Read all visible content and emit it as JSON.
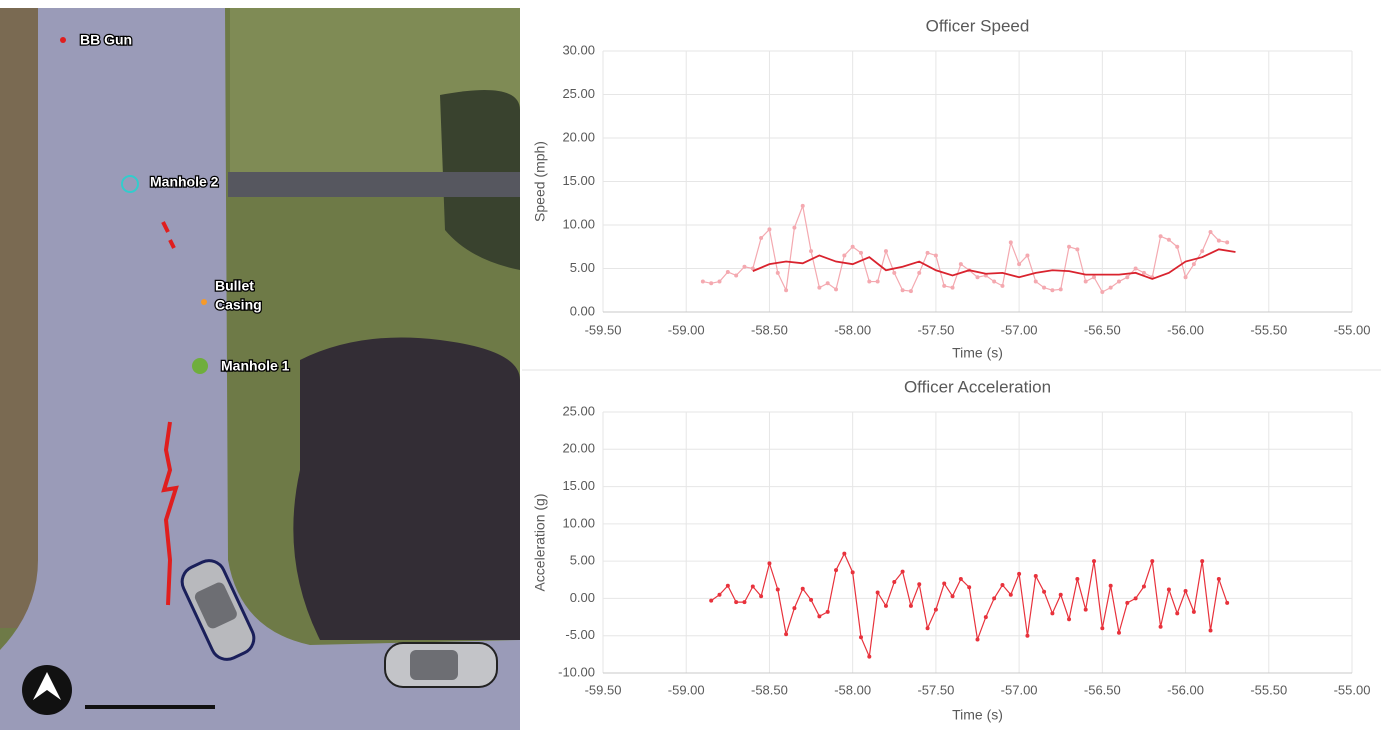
{
  "image": {
    "labels": [
      "BB Gun",
      "Manhole 2",
      [
        "Bullet",
        "Casing"
      ],
      "Manhole 1"
    ]
  },
  "chart_data": [
    {
      "type": "line",
      "title": "Officer Speed",
      "x_label": "Time (s)",
      "y_label": "Speed (mph)",
      "grid": true,
      "xlim": [
        -59.5,
        -55
      ],
      "ylim": [
        0,
        30
      ],
      "xticks": [
        {
          "value": -59.5,
          "label": "-59.50"
        },
        {
          "value": -59,
          "label": "-59.00"
        },
        {
          "value": -58.5,
          "label": "-58.50"
        },
        {
          "value": -58,
          "label": "-58.00"
        },
        {
          "value": -57.5,
          "label": "-57.50"
        },
        {
          "value": -57,
          "label": "-57.00"
        },
        {
          "value": -56.5,
          "label": "-56.50"
        },
        {
          "value": -56,
          "label": "-56.00"
        },
        {
          "value": -55.5,
          "label": "-55.50"
        },
        {
          "value": -55,
          "label": "-55.00"
        }
      ],
      "yticks": [
        {
          "value": 0,
          "label": "0.00"
        },
        {
          "value": 5,
          "label": "5.00"
        },
        {
          "value": 10,
          "label": "10.00"
        },
        {
          "value": 15,
          "label": "15.00"
        },
        {
          "value": 20,
          "label": "20.00"
        },
        {
          "value": 25,
          "label": "25.00"
        },
        {
          "value": 30,
          "label": "30.00"
        }
      ],
      "series": [
        {
          "color": "#f4a9b0",
          "markers": true,
          "x": [
            -58.9,
            -58.85,
            -58.8,
            -58.75,
            -58.7,
            -58.65,
            -58.6,
            -58.55,
            -58.5,
            -58.45,
            -58.4,
            -58.35,
            -58.3,
            -58.25,
            -58.2,
            -58.15,
            -58.1,
            -58.05,
            -58.0,
            -57.95,
            -57.9,
            -57.85,
            -57.8,
            -57.75,
            -57.7,
            -57.65,
            -57.6,
            -57.55,
            -57.5,
            -57.45,
            -57.4,
            -57.35,
            -57.3,
            -57.25,
            -57.2,
            -57.15,
            -57.1,
            -57.05,
            -57.0,
            -56.95,
            -56.9,
            -56.85,
            -56.8,
            -56.75,
            -56.7,
            -56.65,
            -56.6,
            -56.55,
            -56.5,
            -56.45,
            -56.4,
            -56.35,
            -56.3,
            -56.25,
            -56.2,
            -56.15,
            -56.1,
            -56.05,
            -56.0,
            -55.95,
            -55.9,
            -55.85,
            -55.8,
            -55.75
          ],
          "values": [
            3.5,
            3.3,
            3.5,
            4.6,
            4.2,
            5.2,
            5.0,
            8.5,
            9.5,
            4.5,
            2.5,
            9.7,
            12.2,
            7.0,
            2.8,
            3.3,
            2.6,
            6.5,
            7.5,
            6.8,
            3.5,
            3.5,
            7.0,
            4.5,
            2.5,
            2.4,
            4.5,
            6.8,
            6.5,
            3.0,
            2.8,
            5.5,
            4.8,
            4.0,
            4.2,
            3.5,
            3.0,
            8.0,
            5.5,
            6.5,
            3.5,
            2.8,
            2.5,
            2.6,
            7.5,
            7.2,
            3.5,
            4.0,
            2.3,
            2.8,
            3.5,
            4.0,
            5.0,
            4.5,
            4.0,
            8.7,
            8.3,
            7.5,
            4.0,
            5.5,
            7.0,
            9.2,
            8.2,
            8.0
          ]
        },
        {
          "color": "#d9232e",
          "markers": false,
          "x": [
            -58.6,
            -58.5,
            -58.4,
            -58.3,
            -58.2,
            -58.1,
            -58.0,
            -57.9,
            -57.8,
            -57.7,
            -57.6,
            -57.5,
            -57.4,
            -57.3,
            -57.2,
            -57.1,
            -57.0,
            -56.9,
            -56.8,
            -56.7,
            -56.6,
            -56.5,
            -56.4,
            -56.3,
            -56.2,
            -56.1,
            -56.0,
            -55.9,
            -55.8,
            -55.7
          ],
          "values": [
            4.7,
            5.5,
            5.8,
            5.6,
            6.5,
            5.8,
            5.5,
            6.3,
            4.8,
            5.2,
            5.8,
            4.8,
            4.2,
            4.8,
            4.4,
            4.5,
            4.0,
            4.5,
            4.8,
            4.7,
            4.3,
            4.3,
            4.3,
            4.5,
            3.8,
            4.5,
            5.8,
            6.3,
            7.2,
            6.9
          ]
        }
      ]
    },
    {
      "type": "line",
      "title": "Officer Acceleration",
      "x_label": "Time (s)",
      "y_label": "Acceleration (g)",
      "grid": true,
      "xlim": [
        -59.5,
        -55
      ],
      "ylim": [
        -10,
        25
      ],
      "xticks": [
        {
          "value": -59.5,
          "label": "-59.50"
        },
        {
          "value": -59,
          "label": "-59.00"
        },
        {
          "value": -58.5,
          "label": "-58.50"
        },
        {
          "value": -58,
          "label": "-58.00"
        },
        {
          "value": -57.5,
          "label": "-57.50"
        },
        {
          "value": -57,
          "label": "-57.00"
        },
        {
          "value": -56.5,
          "label": "-56.50"
        },
        {
          "value": -56,
          "label": "-56.00"
        },
        {
          "value": -55.5,
          "label": "-55.50"
        },
        {
          "value": -55,
          "label": "-55.00"
        }
      ],
      "yticks": [
        {
          "value": -10,
          "label": "-10.00"
        },
        {
          "value": -5,
          "label": "-5.00"
        },
        {
          "value": 0,
          "label": "0.00"
        },
        {
          "value": 5,
          "label": "5.00"
        },
        {
          "value": 10,
          "label": "10.00"
        },
        {
          "value": 15,
          "label": "15.00"
        },
        {
          "value": 20,
          "label": "20.00"
        },
        {
          "value": 25,
          "label": "25.00"
        }
      ],
      "series": [
        {
          "color": "#e8323c",
          "markers": true,
          "x": [
            -58.85,
            -58.8,
            -58.75,
            -58.7,
            -58.65,
            -58.6,
            -58.55,
            -58.5,
            -58.45,
            -58.4,
            -58.35,
            -58.3,
            -58.25,
            -58.2,
            -58.15,
            -58.1,
            -58.05,
            -58.0,
            -57.95,
            -57.9,
            -57.85,
            -57.8,
            -57.75,
            -57.7,
            -57.65,
            -57.6,
            -57.55,
            -57.5,
            -57.45,
            -57.4,
            -57.35,
            -57.3,
            -57.25,
            -57.2,
            -57.15,
            -57.1,
            -57.05,
            -57.0,
            -56.95,
            -56.9,
            -56.85,
            -56.8,
            -56.75,
            -56.7,
            -56.65,
            -56.6,
            -56.55,
            -56.5,
            -56.45,
            -56.4,
            -56.35,
            -56.3,
            -56.25,
            -56.2,
            -56.15,
            -56.1,
            -56.05,
            -56.0,
            -55.95,
            -55.9,
            -55.85,
            -55.8,
            -55.75
          ],
          "values": [
            -0.3,
            0.5,
            1.7,
            -0.5,
            -0.5,
            1.6,
            0.3,
            4.7,
            1.2,
            -4.8,
            -1.3,
            1.3,
            -0.2,
            -2.4,
            -1.8,
            3.8,
            6.0,
            3.5,
            -5.2,
            -7.8,
            0.8,
            -1.0,
            2.2,
            3.6,
            -1.0,
            1.9,
            -4.0,
            -1.5,
            2.0,
            0.3,
            2.6,
            1.5,
            -5.5,
            -2.5,
            0.0,
            1.8,
            0.5,
            3.3,
            -5.0,
            3.0,
            0.9,
            -2.0,
            0.5,
            -2.8,
            2.6,
            -1.5,
            5.0,
            -4.0,
            1.7,
            -4.6,
            -0.6,
            0.0,
            1.6,
            5.0,
            -3.8,
            1.2,
            -2.0,
            1.0,
            -1.8,
            5.0,
            -4.3,
            2.6,
            -0.6
          ]
        }
      ]
    }
  ]
}
